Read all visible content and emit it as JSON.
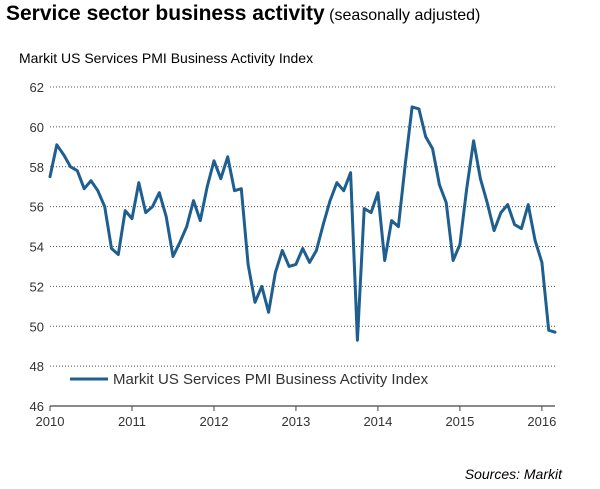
{
  "colors": {
    "series": "#1f5f8f",
    "grid": "#555555",
    "axis": "#444444"
  },
  "header": {
    "title": "Service sector business activity",
    "title_suffix": "(seasonally adjusted)",
    "subtitle": "Markit US Services PMI Business Activity Index"
  },
  "source": "Sources: Markit",
  "chart_data": {
    "type": "line",
    "title": "Markit US Services PMI Business Activity Index",
    "xlabel": "",
    "ylabel": "",
    "ylim": [
      46,
      62
    ],
    "xlim": [
      2010,
      2016.16
    ],
    "yticks": [
      46,
      48,
      50,
      52,
      54,
      56,
      58,
      60,
      62
    ],
    "xticks": [
      2010,
      2011,
      2012,
      2013,
      2014,
      2015,
      2016
    ],
    "grid": "horizontal dotted",
    "legend": {
      "position": "lower-left",
      "entries": [
        "Markit US Services PMI Business Activity Index"
      ]
    },
    "series": [
      {
        "name": "Markit US Services PMI Business Activity Index",
        "x": [
          2010.0,
          2010.083,
          2010.167,
          2010.25,
          2010.333,
          2010.417,
          2010.5,
          2010.583,
          2010.667,
          2010.75,
          2010.833,
          2010.917,
          2011.0,
          2011.083,
          2011.167,
          2011.25,
          2011.333,
          2011.417,
          2011.5,
          2011.583,
          2011.667,
          2011.75,
          2011.833,
          2011.917,
          2012.0,
          2012.083,
          2012.167,
          2012.25,
          2012.333,
          2012.417,
          2012.5,
          2012.583,
          2012.667,
          2012.75,
          2012.833,
          2012.917,
          2013.0,
          2013.083,
          2013.167,
          2013.25,
          2013.333,
          2013.417,
          2013.5,
          2013.583,
          2013.667,
          2013.75,
          2013.833,
          2013.917,
          2014.0,
          2014.083,
          2014.167,
          2014.25,
          2014.333,
          2014.417,
          2014.5,
          2014.583,
          2014.667,
          2014.75,
          2014.833,
          2014.917,
          2015.0,
          2015.083,
          2015.167,
          2015.25,
          2015.333,
          2015.417,
          2015.5,
          2015.583,
          2015.667,
          2015.75,
          2015.833,
          2015.917,
          2016.0,
          2016.083,
          2016.16
        ],
        "values": [
          57.5,
          59.1,
          58.6,
          58.0,
          57.8,
          56.9,
          57.3,
          56.8,
          56.0,
          53.9,
          53.6,
          55.8,
          55.4,
          57.2,
          55.7,
          56.0,
          56.7,
          55.5,
          53.5,
          54.2,
          55.0,
          56.3,
          55.3,
          57.0,
          58.3,
          57.4,
          58.5,
          56.8,
          56.9,
          53.1,
          51.2,
          52.0,
          50.7,
          52.7,
          53.8,
          53.0,
          53.1,
          53.9,
          53.2,
          53.8,
          55.1,
          56.3,
          57.2,
          56.8,
          57.7,
          49.3,
          55.9,
          55.7,
          56.7,
          53.3,
          55.3,
          55.0,
          58.1,
          61.0,
          60.9,
          59.5,
          58.9,
          57.1,
          56.2,
          53.3,
          54.1,
          56.9,
          59.3,
          57.4,
          56.2,
          54.8,
          55.7,
          56.1,
          55.1,
          54.9,
          56.1,
          54.3,
          53.2,
          49.8,
          49.7
        ]
      }
    ]
  }
}
